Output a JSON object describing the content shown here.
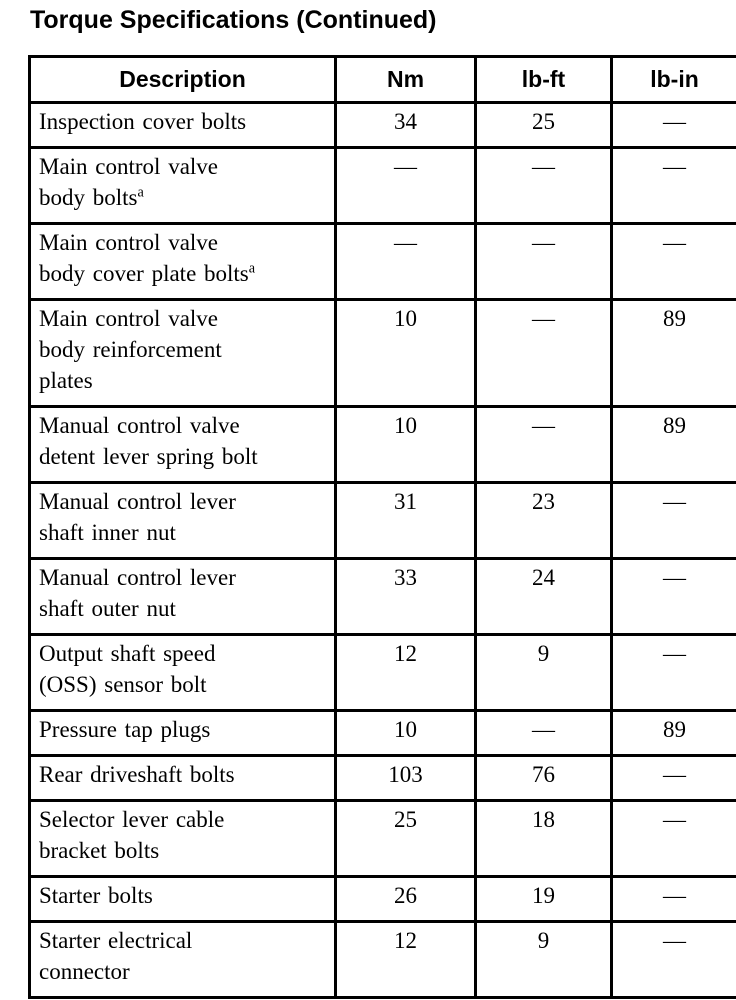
{
  "page": {
    "title": "Torque Specifications (Continued)"
  },
  "colors": {
    "text": "#000000",
    "border": "#000000",
    "background": "#ffffff"
  },
  "table": {
    "headers": [
      "Description",
      "Nm",
      "lb-ft",
      "lb-in"
    ],
    "empty_value": "—",
    "footnote_marker": "a",
    "rows": [
      {
        "description": "Inspection cover bolts",
        "sup": "",
        "nm": "34",
        "lb_ft": "25",
        "lb_in": "—"
      },
      {
        "description": "Main control valve\nbody bolts",
        "sup": "a",
        "nm": "—",
        "lb_ft": "—",
        "lb_in": "—"
      },
      {
        "description": "Main control valve\nbody cover plate bolts",
        "sup": "a",
        "nm": "—",
        "lb_ft": "—",
        "lb_in": "—"
      },
      {
        "description": "Main control valve\nbody reinforcement\nplates",
        "sup": "",
        "nm": "10",
        "lb_ft": "—",
        "lb_in": "89"
      },
      {
        "description": "Manual control valve\ndetent lever spring bolt",
        "sup": "",
        "nm": "10",
        "lb_ft": "—",
        "lb_in": "89"
      },
      {
        "description": "Manual control lever\nshaft inner nut",
        "sup": "",
        "nm": "31",
        "lb_ft": "23",
        "lb_in": "—"
      },
      {
        "description": "Manual control lever\nshaft outer nut",
        "sup": "",
        "nm": "33",
        "lb_ft": "24",
        "lb_in": "—"
      },
      {
        "description": "Output shaft speed\n(OSS) sensor bolt",
        "sup": "",
        "nm": "12",
        "lb_ft": "9",
        "lb_in": "—"
      },
      {
        "description": "Pressure tap plugs",
        "sup": "",
        "nm": "10",
        "lb_ft": "—",
        "lb_in": "89"
      },
      {
        "description": "Rear driveshaft bolts",
        "sup": "",
        "nm": "103",
        "lb_ft": "76",
        "lb_in": "—"
      },
      {
        "description": "Selector lever cable\nbracket bolts",
        "sup": "",
        "nm": "25",
        "lb_ft": "18",
        "lb_in": "—"
      },
      {
        "description": "Starter bolts",
        "sup": "",
        "nm": "26",
        "lb_ft": "19",
        "lb_in": "—"
      },
      {
        "description": "Starter electrical\nconnector",
        "sup": "",
        "nm": "12",
        "lb_ft": "9",
        "lb_in": "—"
      }
    ]
  }
}
